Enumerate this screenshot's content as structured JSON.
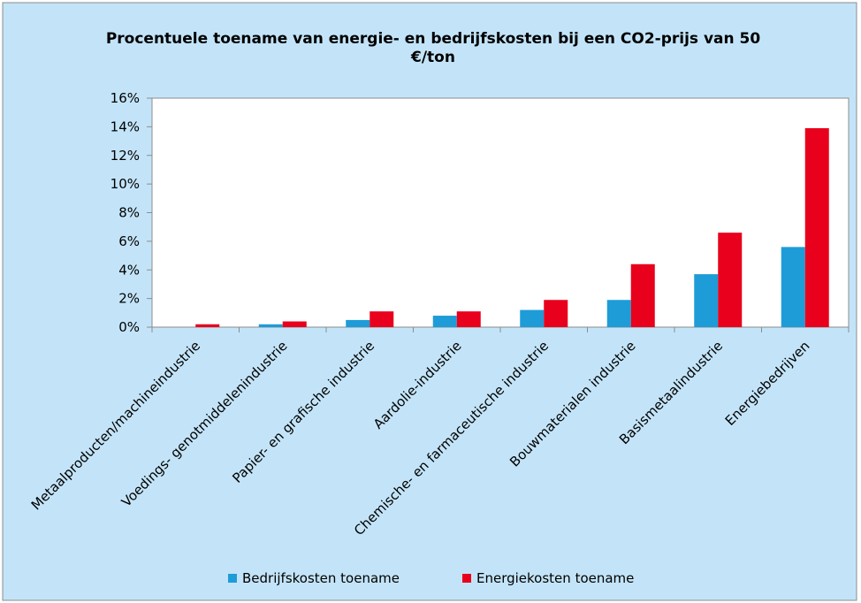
{
  "chart_data": {
    "type": "bar",
    "title": "Procentuele toename van energie- en bedrijfskosten bij een CO2-prijs van 50 €/ton",
    "categories": [
      "Metaalproducten/machineindustrie",
      "Voedings- genotmiddelenindustrie",
      "Papier- en grafische industrie",
      "Aardolie-industrie",
      "Chemische- en farmaceutische industrie",
      "Bouwmaterialen industrie",
      "Basismetaalindustrie",
      "Energiebedrijven"
    ],
    "series": [
      {
        "name": "Bedrijfskosten toename",
        "color": "#1e9cd7",
        "values": [
          0,
          0.2,
          0.5,
          0.8,
          1.2,
          1.9,
          3.7,
          5.6
        ]
      },
      {
        "name": "Energiekosten toename",
        "color": "#e8001c",
        "values": [
          0.2,
          0.4,
          1.1,
          1.1,
          1.9,
          4.4,
          6.6,
          13.9
        ]
      }
    ],
    "ylim": [
      0,
      16
    ],
    "yticks": [
      {
        "value": 0,
        "label": "0%"
      },
      {
        "value": 2,
        "label": "2%"
      },
      {
        "value": 4,
        "label": "4%"
      },
      {
        "value": 6,
        "label": "6%"
      },
      {
        "value": 8,
        "label": "8%"
      },
      {
        "value": 10,
        "label": "10%"
      },
      {
        "value": 12,
        "label": "12%"
      },
      {
        "value": 14,
        "label": "14%"
      },
      {
        "value": 16,
        "label": "16%"
      }
    ],
    "grid": false,
    "legend": "bottom"
  }
}
